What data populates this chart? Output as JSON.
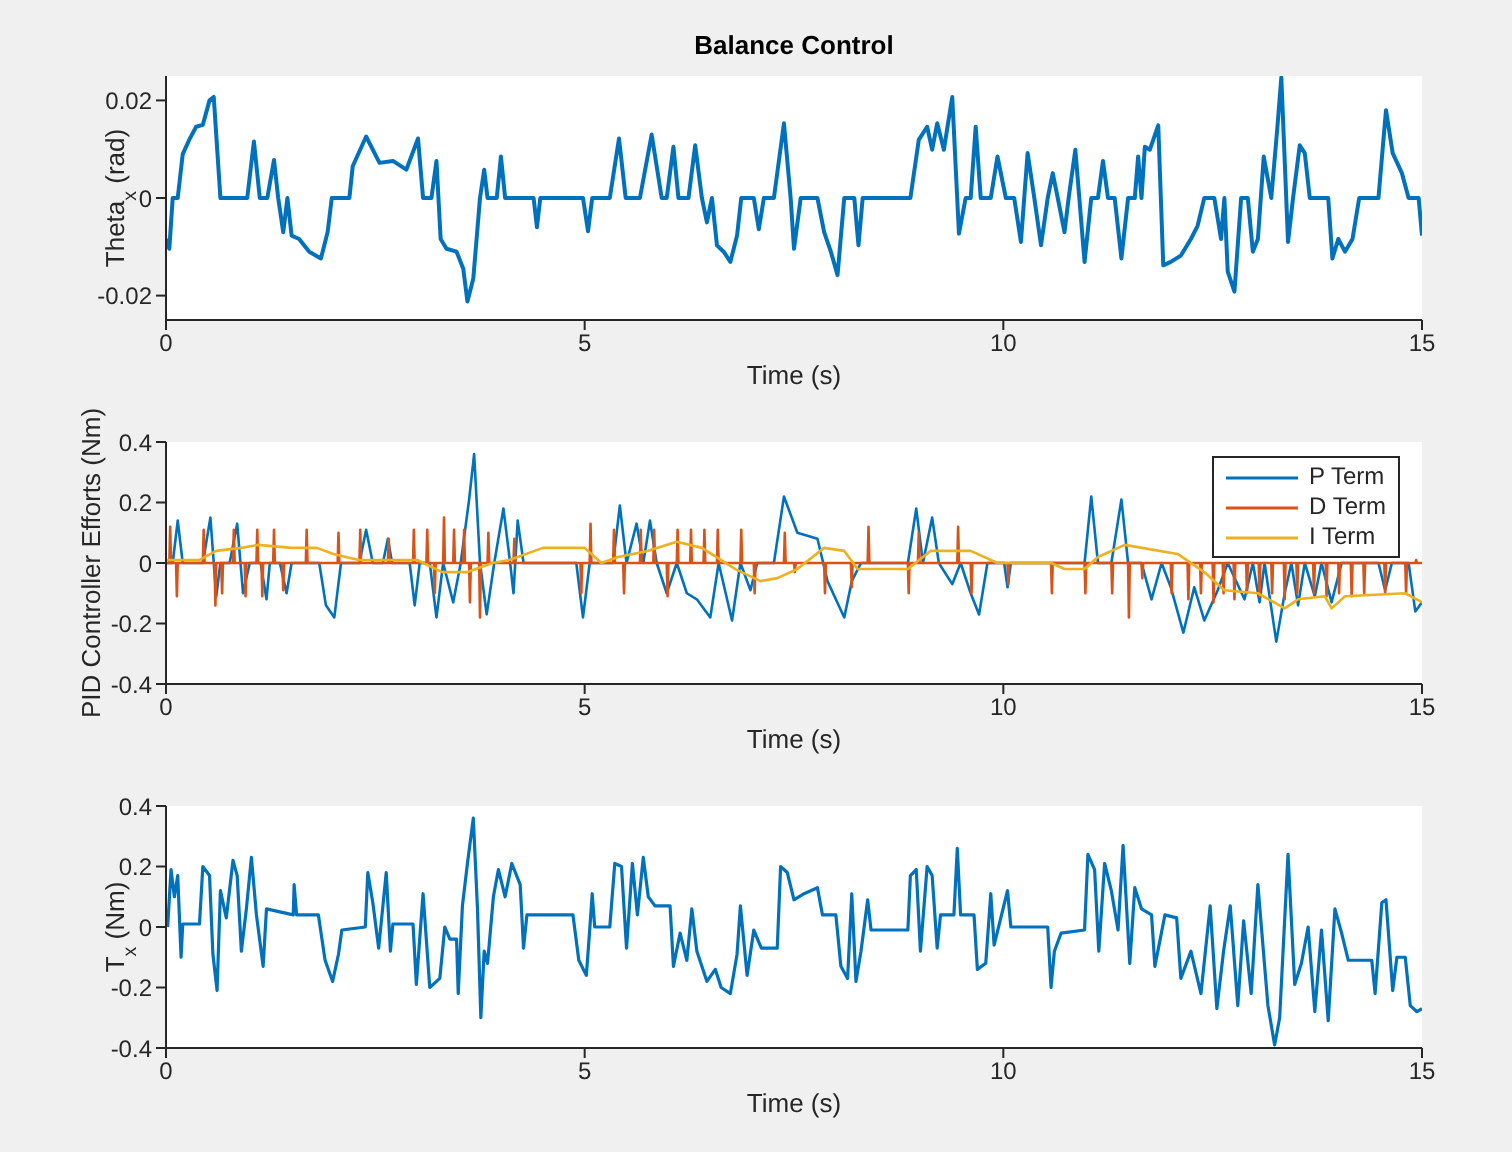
{
  "chart_data": [
    {
      "type": "line",
      "title": "Balance Control",
      "xlabel": "Time (s)",
      "ylabel": "Theta$_{x}$ (rad)",
      "xlim": [
        0,
        15
      ],
      "xticks": [
        0,
        5,
        10,
        15
      ],
      "ylim": [
        -0.025,
        0.025
      ],
      "yticks": [
        -0.02,
        0,
        0.02
      ],
      "grid": false,
      "legend": false,
      "series": [
        {
          "color": "#0072bd",
          "x": [
            0,
            0.04,
            0.08,
            0.14,
            0.2,
            0.28,
            0.36,
            0.44,
            0.52,
            0.57,
            0.65,
            0.97,
            1.05,
            1.12,
            1.21,
            1.29,
            1.34,
            1.4,
            1.45,
            1.5,
            1.59,
            1.71,
            1.85,
            1.93,
            1.98,
            2.19,
            2.23,
            2.39,
            2.55,
            2.71,
            2.87,
            3.01,
            3.07,
            3.17,
            3.23,
            3.28,
            3.35,
            3.47,
            3.55,
            3.6,
            3.67,
            3.75,
            3.8,
            3.84,
            3.95,
            4.0,
            4.05,
            4.39,
            4.43,
            4.47,
            4.98,
            5.04,
            5.09,
            5.3,
            5.41,
            5.49,
            5.66,
            5.8,
            5.92,
            5.98,
            6.06,
            6.12,
            6.24,
            6.32,
            6.4,
            6.46,
            6.52,
            6.58,
            6.66,
            6.74,
            6.82,
            6.87,
            7.02,
            7.08,
            7.14,
            7.26,
            7.38,
            7.46,
            7.5,
            7.58,
            7.78,
            7.86,
            7.94,
            8.02,
            8.1,
            8.22,
            8.27,
            8.32,
            8.89,
            8.99,
            9.09,
            9.15,
            9.21,
            9.29,
            9.39,
            9.47,
            9.55,
            9.61,
            9.67,
            9.73,
            9.85,
            9.93,
            10.03,
            10.13,
            10.21,
            10.29,
            10.37,
            10.45,
            10.53,
            10.59,
            10.65,
            10.73,
            10.78,
            10.86,
            10.97,
            11.05,
            11.13,
            11.19,
            11.25,
            11.33,
            11.41,
            11.49,
            11.57,
            11.61,
            11.65,
            11.69,
            11.75,
            11.85,
            11.91,
            12.0,
            12.12,
            12.24,
            12.32,
            12.4,
            12.52,
            12.6,
            12.64,
            12.68,
            12.76,
            12.84,
            12.92,
            12.98,
            13.04,
            13.11,
            13.2,
            13.27,
            13.32,
            13.4,
            13.46,
            13.54,
            13.6,
            13.66,
            13.88,
            13.93,
            14.0,
            14.08,
            14.17,
            14.25,
            14.48,
            14.57,
            14.65,
            14.76,
            14.84,
            14.96,
            15.0
          ],
          "values": [
            -0.0084,
            -0.0104,
            0,
            0,
            0.009,
            0.012,
            0.0146,
            0.015,
            0.02,
            0.0207,
            0,
            0,
            0.0116,
            0,
            0,
            0.0078,
            0,
            -0.007,
            0,
            -0.0077,
            -0.0084,
            -0.011,
            -0.0124,
            -0.007,
            0,
            0,
            0.0065,
            0.0126,
            0.0072,
            0.0076,
            0.0058,
            0.0122,
            0,
            0,
            0.0076,
            -0.0084,
            -0.0104,
            -0.011,
            -0.0145,
            -0.0212,
            -0.0165,
            0,
            0.0058,
            0,
            0,
            0.0085,
            0,
            0,
            -0.006,
            0,
            0,
            -0.0068,
            0,
            0,
            0.0122,
            0,
            0,
            0.013,
            0,
            0,
            0.0105,
            0,
            0,
            0.0108,
            0,
            -0.005,
            0,
            -0.0097,
            -0.011,
            -0.0131,
            -0.0077,
            0,
            0,
            -0.0064,
            0,
            0,
            0.0153,
            0,
            -0.0104,
            0,
            0,
            -0.007,
            -0.011,
            -0.0158,
            0,
            0,
            -0.0097,
            0,
            0,
            0.0119,
            0.0146,
            0.0099,
            0.0153,
            0.0099,
            0.0207,
            -0.0073,
            0,
            0,
            0.0146,
            0,
            0,
            0.0085,
            0,
            0,
            -0.009,
            0.0092,
            0,
            -0.0097,
            0,
            0.0051,
            0,
            -0.007,
            0,
            0.0099,
            -0.0131,
            0,
            0,
            0.0076,
            0,
            0,
            -0.0124,
            0,
            0,
            0.0085,
            0,
            0.0105,
            0.0099,
            0.0149,
            -0.0138,
            -0.0131,
            -0.0118,
            -0.0084,
            -0.0057,
            0,
            0,
            -0.0084,
            0,
            -0.0151,
            -0.0192,
            0,
            0,
            -0.011,
            -0.0084,
            0.0085,
            0,
            0.0139,
            0.0247,
            -0.009,
            0,
            0.0108,
            0.0092,
            0,
            0,
            -0.0124,
            -0.0084,
            -0.011,
            -0.0084,
            0,
            0,
            0.018,
            0.0092,
            0.0051,
            0,
            0,
            -0.0077
          ]
        }
      ]
    },
    {
      "type": "line",
      "xlabel": "Time (s)",
      "ylabel": "PID Controller Efforts (Nm)",
      "xlim": [
        0,
        15
      ],
      "xticks": [
        0,
        5,
        10,
        15
      ],
      "ylim": [
        -0.4,
        0.4
      ],
      "yticks": [
        -0.4,
        -0.2,
        0,
        0.2,
        0.4
      ],
      "grid": false,
      "legend": "top right",
      "series": [
        {
          "name": "P Term",
          "color": "#0072bd",
          "x": [
            0,
            0.08,
            0.14,
            0.2,
            0.44,
            0.53,
            0.6,
            0.65,
            0.76,
            0.85,
            0.92,
            1.0,
            1.13,
            1.2,
            1.24,
            1.36,
            1.44,
            1.5,
            1.83,
            1.91,
            2.01,
            2.09,
            2.31,
            2.39,
            2.47,
            2.59,
            2.65,
            2.7,
            2.91,
            2.97,
            3.03,
            3.15,
            3.23,
            3.31,
            3.43,
            3.52,
            3.62,
            3.68,
            3.75,
            3.83,
            3.92,
            4.03,
            4.11,
            4.15,
            4.2,
            4.27,
            4.9,
            4.98,
            5.06,
            5.34,
            5.42,
            5.5,
            5.62,
            5.7,
            5.78,
            5.86,
            5.98,
            6.1,
            6.22,
            6.34,
            6.5,
            6.6,
            6.76,
            6.86,
            6.98,
            7.06,
            7.26,
            7.38,
            7.54,
            7.78,
            7.9,
            8.1,
            8.19,
            8.3,
            8.86,
            8.96,
            9.04,
            9.15,
            9.23,
            9.39,
            9.49,
            9.61,
            9.71,
            9.81,
            10.01,
            10.05,
            10.09,
            10.97,
            11.05,
            11.13,
            11.29,
            11.41,
            11.49,
            11.65,
            11.77,
            11.89,
            12.0,
            12.15,
            12.28,
            12.4,
            12.56,
            12.68,
            12.88,
            12.98,
            13.06,
            13.12,
            13.26,
            13.36,
            13.44,
            13.52,
            13.6,
            13.72,
            13.8,
            13.92,
            14.04,
            14.48,
            14.56,
            14.64,
            14.84,
            14.92,
            15.0
          ],
          "values": [
            0,
            0,
            0.14,
            0,
            0,
            0.15,
            -0.11,
            0,
            0,
            0.13,
            -0.1,
            0,
            0,
            -0.12,
            0,
            0,
            -0.1,
            0,
            0,
            -0.14,
            -0.18,
            0,
            0,
            0.11,
            0,
            0,
            0.08,
            0,
            0,
            -0.14,
            0,
            0,
            -0.18,
            0,
            -0.13,
            0,
            0.21,
            0.36,
            0,
            -0.17,
            0,
            0.18,
            0,
            -0.1,
            0.14,
            0,
            0,
            -0.18,
            0,
            0,
            0.19,
            0,
            0.13,
            0,
            0.14,
            0,
            -0.1,
            0,
            -0.1,
            -0.12,
            -0.18,
            0,
            -0.19,
            0,
            -0.09,
            0,
            0,
            0.22,
            0.1,
            0.08,
            -0.06,
            -0.18,
            -0.06,
            0,
            0,
            0.18,
            0,
            0.15,
            0,
            -0.07,
            0,
            -0.1,
            -0.17,
            0,
            0,
            -0.08,
            0,
            0,
            0.22,
            0,
            0,
            0.21,
            0,
            0,
            -0.12,
            0,
            -0.08,
            -0.23,
            -0.08,
            -0.19,
            -0.09,
            0,
            -0.12,
            0,
            -0.13,
            0,
            -0.26,
            -0.1,
            0,
            -0.14,
            0,
            -0.11,
            0,
            -0.13,
            0,
            0,
            -0.09,
            0,
            0,
            -0.16,
            -0.13
          ]
        },
        {
          "name": "D Term",
          "color": "#d95319",
          "x": [
            0,
            0.04,
            0.05,
            0.06,
            0.12,
            0.13,
            0.14,
            0.44,
            0.45,
            0.46,
            0.58,
            0.59,
            0.6,
            0.66,
            0.67,
            0.68,
            0.8,
            0.81,
            0.82,
            0.94,
            0.95,
            0.96,
            1.08,
            1.09,
            1.1,
            1.14,
            1.15,
            1.16,
            1.28,
            1.29,
            1.3,
            1.39,
            1.4,
            1.41,
            1.67,
            1.68,
            1.69,
            2.05,
            2.06,
            2.07,
            2.31,
            2.32,
            2.33,
            2.65,
            2.66,
            2.67,
            2.95,
            2.96,
            2.97,
            3.11,
            3.12,
            3.13,
            3.2,
            3.21,
            3.22,
            3.31,
            3.32,
            3.33,
            3.43,
            3.44,
            3.45,
            3.55,
            3.56,
            3.57,
            3.62,
            3.63,
            3.64,
            3.74,
            3.75,
            3.76,
            3.84,
            3.85,
            3.86,
            4.15,
            4.16,
            4.17,
            4.95,
            4.96,
            4.97,
            5.06,
            5.07,
            5.08,
            5.34,
            5.35,
            5.36,
            5.46,
            5.47,
            5.48,
            5.66,
            5.67,
            5.68,
            5.82,
            5.83,
            5.84,
            5.98,
            5.99,
            6.0,
            6.1,
            6.11,
            6.12,
            6.26,
            6.27,
            6.28,
            6.42,
            6.43,
            6.44,
            6.58,
            6.59,
            6.6,
            6.86,
            6.87,
            6.88,
            7.02,
            7.03,
            7.04,
            7.38,
            7.39,
            7.4,
            7.5,
            7.51,
            7.52,
            7.86,
            7.87,
            7.88,
            8.18,
            8.19,
            8.2,
            8.38,
            8.39,
            8.4,
            8.86,
            8.87,
            8.88,
            8.98,
            8.99,
            9.0,
            9.45,
            9.46,
            9.47,
            9.61,
            9.62,
            9.63,
            10.05,
            10.06,
            10.07,
            10.57,
            10.58,
            10.59,
            10.97,
            10.98,
            10.99,
            11.29,
            11.3,
            11.31,
            11.49,
            11.5,
            11.51,
            11.65,
            11.66,
            11.67,
            12.0,
            12.01,
            12.02,
            12.2,
            12.21,
            12.22,
            12.35,
            12.36,
            12.37,
            12.5,
            12.51,
            12.52,
            12.62,
            12.63,
            12.64,
            12.75,
            12.76,
            12.77,
            12.9,
            12.91,
            12.92,
            13.05,
            13.06,
            13.07,
            13.2,
            13.21,
            13.22,
            13.35,
            13.36,
            13.37,
            13.5,
            13.51,
            13.52,
            13.7,
            13.71,
            13.72,
            13.85,
            13.86,
            13.87,
            14.0,
            14.01,
            14.02,
            14.15,
            14.16,
            14.17,
            14.3,
            14.31,
            14.32,
            14.55,
            14.56,
            14.57,
            14.8,
            14.81,
            14.82,
            14.92,
            14.93,
            14.94,
            15
          ],
          "values": [
            0,
            0,
            0.12,
            0,
            0,
            -0.11,
            0,
            0,
            0.11,
            0,
            0,
            -0.14,
            0,
            0,
            -0.1,
            0,
            0,
            0.11,
            0,
            0,
            -0.11,
            0,
            0,
            0.11,
            0,
            0,
            -0.11,
            0,
            0,
            0.11,
            0,
            0,
            -0.09,
            0,
            0,
            0.11,
            0,
            0,
            0.1,
            0,
            0,
            0.11,
            0,
            0,
            0.08,
            0,
            0,
            0.11,
            0,
            0,
            0.11,
            0,
            0,
            -0.1,
            0,
            0,
            0.15,
            0,
            0,
            0.11,
            0,
            0,
            0.11,
            0,
            0,
            -0.13,
            0,
            0,
            -0.18,
            0,
            0,
            0.1,
            0,
            0,
            0.08,
            0,
            0,
            -0.1,
            0,
            0,
            0.13,
            0,
            0,
            0.11,
            0,
            0,
            -0.1,
            0,
            0,
            0.11,
            0,
            0,
            0.11,
            0,
            0,
            -0.11,
            0,
            0,
            0.11,
            0,
            0,
            0.11,
            0,
            0,
            0.11,
            0,
            0,
            0.11,
            0,
            0,
            0.11,
            0,
            0,
            -0.1,
            0,
            0,
            0.1,
            0,
            0,
            -0.03,
            0,
            0,
            -0.1,
            0,
            0,
            -0.08,
            0,
            0,
            0.12,
            0,
            0,
            -0.1,
            0,
            0,
            0.1,
            0,
            0,
            0.12,
            0,
            0,
            -0.1,
            0,
            0,
            -0.07,
            0,
            0,
            -0.1,
            0,
            0,
            -0.1,
            0,
            0,
            -0.1,
            0,
            0,
            -0.18,
            0,
            0,
            -0.05,
            0,
            0,
            -0.1,
            0,
            0,
            -0.12,
            0,
            0,
            -0.1,
            0,
            0,
            -0.13,
            0,
            0,
            -0.1,
            0,
            0,
            -0.12,
            0,
            0,
            -0.1,
            0,
            0,
            -0.11,
            0,
            0,
            -0.1,
            0,
            0,
            -0.12,
            0,
            0,
            -0.1,
            0,
            0,
            -0.1,
            0,
            0,
            -0.11,
            0,
            0,
            -0.1,
            0,
            0,
            -0.11,
            0,
            0,
            -0.1,
            0,
            0,
            -0.1,
            0,
            0,
            -0.1,
            0,
            0,
            0.01,
            0,
            0
          ]
        },
        {
          "name": "I Term",
          "color": "#edb120",
          "x": [
            0,
            0.4,
            0.6,
            0.9,
            1.1,
            1.5,
            1.8,
            2.0,
            2.3,
            3.0,
            3.3,
            3.6,
            3.9,
            4.1,
            4.5,
            5.0,
            5.2,
            5.4,
            5.75,
            6.1,
            6.4,
            6.8,
            7.1,
            7.3,
            7.54,
            7.86,
            8.1,
            8.26,
            8.86,
            9.13,
            9.61,
            9.93,
            10.57,
            10.73,
            10.97,
            11.13,
            11.45,
            12.08,
            12.4,
            12.64,
            13.04,
            13.36,
            13.52,
            13.84,
            13.92,
            14.08,
            14.8,
            15.0
          ],
          "values": [
            0.01,
            0.01,
            0.04,
            0.05,
            0.06,
            0.05,
            0.05,
            0.03,
            0.01,
            0.01,
            -0.03,
            -0.03,
            0,
            0.01,
            0.05,
            0.05,
            0,
            0.02,
            0.04,
            0.07,
            0.05,
            -0.02,
            -0.06,
            -0.05,
            -0.02,
            0.05,
            0.04,
            -0.02,
            -0.02,
            0.04,
            0.04,
            0,
            0,
            -0.02,
            -0.02,
            0.02,
            0.06,
            0.03,
            -0.03,
            -0.09,
            -0.1,
            -0.15,
            -0.12,
            -0.11,
            -0.15,
            -0.11,
            -0.1,
            -0.13
          ]
        }
      ]
    },
    {
      "type": "line",
      "xlabel": "Time (s)",
      "ylabel": "T$_{x}$ (Nm)",
      "xlim": [
        0,
        15
      ],
      "xticks": [
        0,
        5,
        10,
        15
      ],
      "ylim": [
        -0.4,
        0.4
      ],
      "yticks": [
        -0.4,
        -0.2,
        0,
        0.2,
        0.4
      ],
      "grid": false,
      "legend": false,
      "series": [
        {
          "color": "#0072bd",
          "x": [
            0.02,
            0.06,
            0.1,
            0.14,
            0.18,
            0.2,
            0.4,
            0.44,
            0.52,
            0.56,
            0.61,
            0.65,
            0.72,
            0.8,
            0.85,
            0.9,
            0.96,
            1.02,
            1.08,
            1.16,
            1.2,
            1.52,
            1.53,
            1.56,
            1.82,
            1.9,
            1.99,
            2.06,
            2.1,
            2.38,
            2.41,
            2.47,
            2.54,
            2.63,
            2.68,
            2.71,
            2.95,
            2.99,
            3.07,
            3.15,
            3.27,
            3.33,
            3.39,
            3.47,
            3.49,
            3.54,
            3.6,
            3.67,
            3.72,
            3.76,
            3.8,
            3.84,
            3.91,
            3.97,
            4.05,
            4.13,
            4.23,
            4.27,
            4.31,
            4.86,
            4.93,
            5.02,
            5.06,
            5.09,
            5.12,
            5.3,
            5.36,
            5.44,
            5.5,
            5.57,
            5.63,
            5.7,
            5.76,
            5.84,
            6.02,
            6.06,
            6.14,
            6.22,
            6.28,
            6.34,
            6.46,
            6.56,
            6.63,
            6.74,
            6.82,
            6.86,
            6.94,
            7.02,
            7.11,
            7.3,
            7.34,
            7.42,
            7.5,
            7.62,
            7.78,
            7.84,
            8.0,
            8.06,
            8.14,
            8.19,
            8.24,
            8.3,
            8.38,
            8.42,
            8.86,
            8.89,
            8.96,
            9.01,
            9.09,
            9.15,
            9.21,
            9.25,
            9.41,
            9.45,
            9.49,
            9.65,
            9.69,
            9.79,
            9.85,
            9.89,
            10.05,
            10.09,
            10.53,
            10.57,
            10.61,
            10.69,
            10.97,
            11.01,
            11.09,
            11.14,
            11.21,
            11.29,
            11.37,
            11.43,
            11.51,
            11.57,
            11.65,
            11.77,
            11.81,
            11.93,
            12.07,
            12.12,
            12.24,
            12.36,
            12.47,
            12.55,
            12.63,
            12.71,
            12.8,
            12.87,
            12.96,
            13.04,
            13.16,
            13.24,
            13.3,
            13.4,
            13.48,
            13.56,
            13.64,
            13.72,
            13.8,
            13.88,
            13.96,
            14.04,
            14.12,
            14.16,
            14.4,
            14.44,
            14.52,
            14.57,
            14.65,
            14.7,
            14.8,
            14.86,
            14.94,
            15.0
          ],
          "values": [
            0,
            0.19,
            0.1,
            0.17,
            -0.1,
            0.01,
            0.01,
            0.2,
            0.17,
            -0.09,
            -0.21,
            0.12,
            0.03,
            0.22,
            0.17,
            -0.08,
            0.06,
            0.23,
            0.04,
            -0.13,
            0.06,
            0.04,
            0.14,
            0.04,
            0.04,
            -0.11,
            -0.18,
            -0.09,
            -0.01,
            0,
            0.18,
            0.08,
            -0.07,
            0.18,
            -0.08,
            0.01,
            0.01,
            -0.19,
            0.11,
            -0.2,
            -0.17,
            0,
            -0.04,
            -0.04,
            -0.22,
            0.07,
            0.21,
            0.36,
            0.06,
            -0.3,
            -0.08,
            -0.12,
            0.1,
            0.19,
            0.1,
            0.21,
            0.14,
            -0.07,
            0.04,
            0.04,
            -0.11,
            -0.16,
            -0.01,
            0.11,
            0,
            0,
            0.21,
            0.2,
            -0.07,
            0.21,
            0.04,
            0.23,
            0.1,
            0.07,
            0.07,
            -0.13,
            -0.02,
            -0.11,
            0.06,
            -0.08,
            -0.18,
            -0.14,
            -0.2,
            -0.22,
            -0.09,
            0.07,
            -0.16,
            -0.01,
            -0.07,
            -0.07,
            0.2,
            0.18,
            0.09,
            0.11,
            0.13,
            0.04,
            0.04,
            -0.13,
            -0.17,
            0.11,
            -0.18,
            -0.08,
            0.09,
            -0.01,
            -0.01,
            0.17,
            0.19,
            -0.08,
            0.2,
            0.17,
            -0.07,
            0.04,
            0.04,
            0.26,
            0.04,
            0.04,
            -0.14,
            -0.12,
            0.11,
            -0.06,
            0.12,
            0,
            0,
            -0.2,
            -0.08,
            -0.02,
            -0.01,
            0.24,
            0.19,
            -0.08,
            0.21,
            0.12,
            -0.01,
            0.27,
            -0.12,
            0.13,
            0.06,
            0.04,
            -0.13,
            0.04,
            0.03,
            -0.17,
            -0.08,
            -0.22,
            0.07,
            -0.27,
            -0.08,
            0.07,
            -0.26,
            0.02,
            -0.22,
            0.14,
            -0.26,
            -0.39,
            -0.3,
            0.24,
            -0.19,
            -0.12,
            0,
            -0.28,
            -0.01,
            -0.31,
            0.06,
            -0.02,
            -0.11,
            -0.11,
            -0.11,
            -0.22,
            0.08,
            0.09,
            -0.21,
            -0.1,
            -0.1,
            -0.26,
            -0.28,
            -0.27
          ]
        }
      ]
    }
  ]
}
